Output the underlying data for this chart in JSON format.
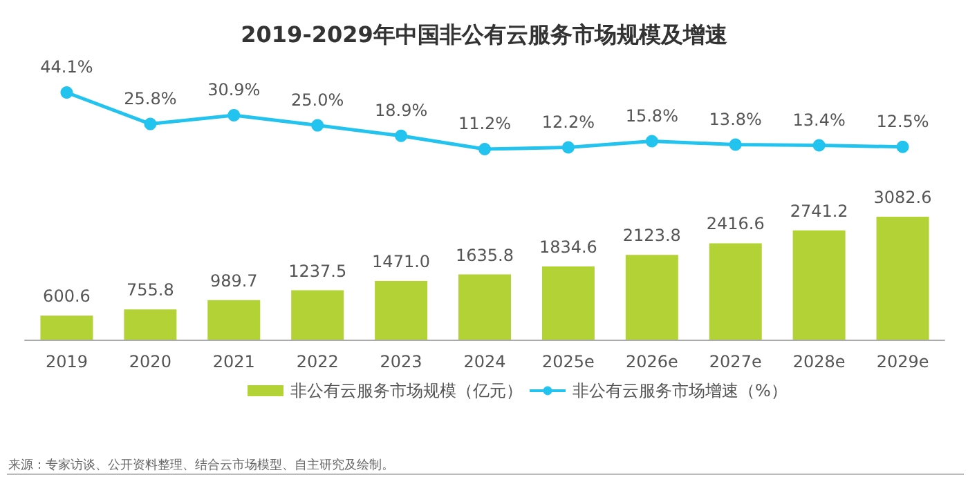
{
  "chart_data": [
    {
      "type": "line",
      "title": "2019-2029年中国非公有云服务市场规模及增速",
      "categories": [
        null,
        null,
        null,
        null,
        null,
        null,
        null,
        null,
        null,
        null,
        null
      ],
      "series": [
        {
          "name": "非公有云服务市场增速（%）",
          "color": "#22c3ee",
          "values": [
            44.1,
            25.8,
            30.9,
            25.0,
            18.9,
            11.2,
            12.2,
            15.8,
            13.8,
            13.4,
            12.5
          ],
          "value_labels": [
            "44.1%",
            "25.8%",
            "30.9%",
            "25.0%",
            "18.9%",
            "11.2%",
            "12.2%",
            "15.8%",
            "13.8%",
            "13.4%",
            "12.5%"
          ]
        }
      ],
      "marker": "circle",
      "line_style": "solid",
      "legend": "bottom",
      "tick_labels": false
    },
    {
      "type": "bar",
      "categories": [
        "2019",
        "2020",
        "2021",
        "2022",
        "2023",
        "2024",
        "2025e",
        "2026e",
        "2027e",
        "2028e",
        "2029e"
      ],
      "series": [
        {
          "name": "非公有云服务市场规模（亿元）",
          "color": "#b2d235",
          "values": [
            600.6,
            755.8,
            989.7,
            1237.5,
            1471.0,
            1635.8,
            1834.6,
            2123.8,
            2416.6,
            2741.2,
            3082.6
          ],
          "value_labels": [
            "600.6",
            "755.8",
            "989.7",
            "1237.5",
            "1471.0",
            "1635.8",
            "1834.6",
            "2123.8",
            "2416.6",
            "2741.2",
            "3082.6"
          ]
        }
      ],
      "legend": "bottom",
      "tick_labels": "x",
      "annotations": [
        "来源：专家访谈、公开资料整理、结合云市场模型、自主研究及绘制。"
      ]
    }
  ]
}
